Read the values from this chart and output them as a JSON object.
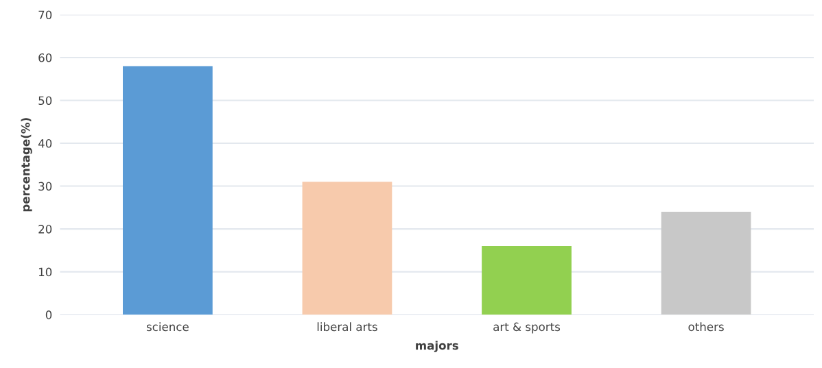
{
  "chart_data": {
    "type": "bar",
    "xlabel": "majors",
    "ylabel": "percentage(%)",
    "categories": [
      "science",
      "liberal arts",
      "art & sports",
      "others"
    ],
    "values": [
      58,
      31,
      16,
      24
    ],
    "colors": [
      "#5b9bd5",
      "#f7caac",
      "#92d050",
      "#c8c8c8"
    ],
    "ylim": [
      0,
      70
    ],
    "yticks": [
      0,
      10,
      20,
      30,
      40,
      50,
      60,
      70
    ],
    "grid": "y"
  }
}
